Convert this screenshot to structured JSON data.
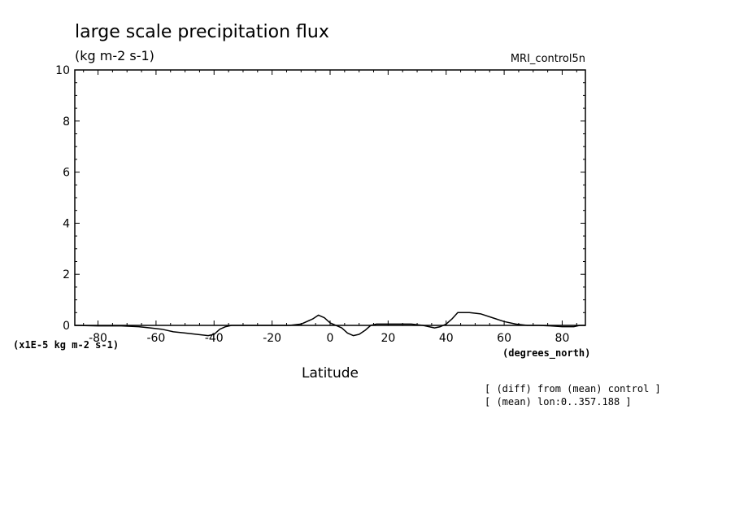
{
  "chart_data": {
    "type": "line",
    "title": "large scale precipitation flux",
    "units_label": "(kg m-2 s-1)",
    "dataset_label": "MRI_control5n",
    "xlabel": "Latitude",
    "x_units_label": "(degrees_north)",
    "y_scale_label": "(x1E-5 kg m-2 s-1)",
    "notes": [
      "[ (diff) from (mean) control ]",
      "[ (mean) lon:0..357.188 ]"
    ],
    "xlim": [
      -88,
      88
    ],
    "ylim": [
      0,
      10
    ],
    "x_ticks": [
      -80,
      -60,
      -40,
      -20,
      0,
      20,
      40,
      60,
      80
    ],
    "x_tick_labels": [
      "-80",
      "-60",
      "-40",
      "-20",
      "0",
      "20",
      "40",
      "60",
      "80"
    ],
    "y_ticks": [
      0,
      2,
      4,
      6,
      8,
      10
    ],
    "y_tick_labels": [
      "0",
      "2",
      "4",
      "6",
      "8",
      "10"
    ],
    "grid": false,
    "series": [
      {
        "color": "#000000",
        "x": [
          -88,
          -80,
          -72,
          -66,
          -62,
          -58,
          -54,
          -50,
          -46,
          -42,
          -40,
          -38,
          -36,
          -34,
          -30,
          -26,
          -22,
          -18,
          -14,
          -10,
          -6,
          -4,
          -2,
          0,
          4,
          6,
          8,
          10,
          12,
          14,
          16,
          20,
          24,
          28,
          32,
          36,
          38,
          40,
          42,
          44,
          48,
          52,
          56,
          60,
          64,
          68,
          72,
          76,
          80,
          84,
          86,
          88
        ],
        "y": [
          0.0,
          -0.02,
          -0.02,
          -0.05,
          -0.1,
          -0.15,
          -0.25,
          -0.3,
          -0.35,
          -0.4,
          -0.35,
          -0.15,
          -0.05,
          0.0,
          0.0,
          0.0,
          0.0,
          0.0,
          0.0,
          0.05,
          0.25,
          0.4,
          0.3,
          0.1,
          -0.1,
          -0.3,
          -0.4,
          -0.35,
          -0.2,
          0.0,
          0.05,
          0.05,
          0.05,
          0.05,
          0.0,
          -0.1,
          -0.05,
          0.05,
          0.25,
          0.5,
          0.5,
          0.45,
          0.3,
          0.15,
          0.05,
          0.0,
          0.0,
          -0.02,
          -0.05,
          -0.05,
          0.0,
          0.0
        ]
      }
    ]
  }
}
